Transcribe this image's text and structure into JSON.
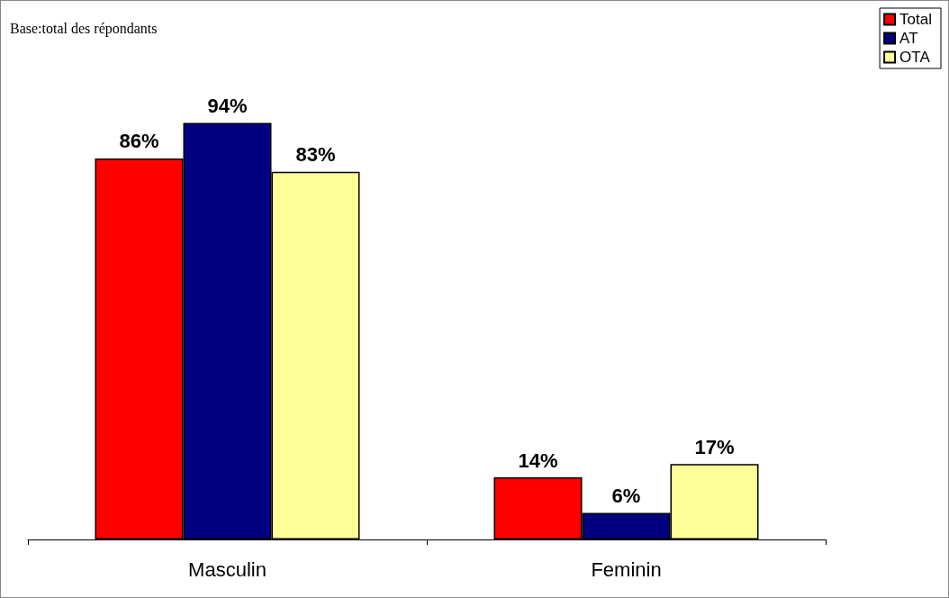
{
  "chart_data": {
    "type": "bar",
    "categories": [
      "Masculin",
      "Feminin"
    ],
    "series": [
      {
        "name": "Total",
        "color": "#ff0000",
        "values": [
          86,
          14
        ],
        "value_labels": [
          "86%",
          "14%"
        ]
      },
      {
        "name": "AT",
        "color": "#000080",
        "values": [
          94,
          6
        ],
        "value_labels": [
          "94%",
          "6%"
        ]
      },
      {
        "name": "OTA",
        "color": "#ffff99",
        "values": [
          83,
          17
        ],
        "value_labels": [
          "83%",
          "17%"
        ]
      }
    ],
    "annotations": [
      "Base:total des répondants"
    ],
    "legend": "top right"
  }
}
